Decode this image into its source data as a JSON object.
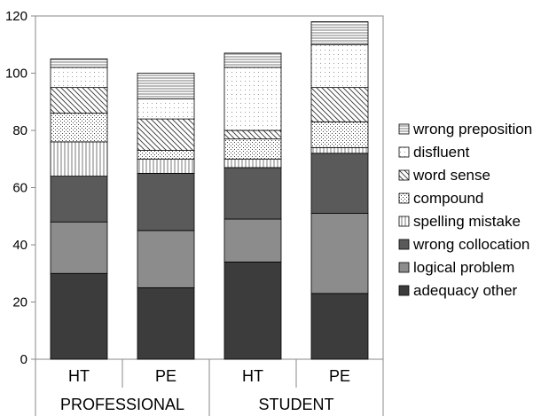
{
  "chart_data": {
    "type": "bar",
    "stacked": true,
    "title": "",
    "xlabel": "",
    "ylabel": "",
    "ylim": [
      0,
      120
    ],
    "yticks": [
      0,
      20,
      40,
      60,
      80,
      100,
      120
    ],
    "grid": false,
    "legend_position": "right",
    "categories": [
      "HT",
      "PE",
      "HT",
      "PE"
    ],
    "groups": [
      {
        "label": "PROFESSIONAL",
        "categories": [
          "HT",
          "PE"
        ]
      },
      {
        "label": "STUDENT",
        "categories": [
          "HT",
          "PE"
        ]
      }
    ],
    "series": [
      {
        "name": "adequacy other",
        "values": [
          30,
          25,
          34,
          23
        ],
        "color": "#3c3c3c",
        "pattern": "solid"
      },
      {
        "name": "logical problem",
        "values": [
          18,
          20,
          15,
          28
        ],
        "color": "#8c8c8c",
        "pattern": "solid"
      },
      {
        "name": "wrong collocation",
        "values": [
          16,
          20,
          18,
          21
        ],
        "color": "#5a5a5a",
        "pattern": "solid"
      },
      {
        "name": "spelling mistake",
        "values": [
          12,
          5,
          3,
          2
        ],
        "color": "#ffffff",
        "pattern": "vertical-lines"
      },
      {
        "name": "compound",
        "values": [
          10,
          3,
          7,
          9
        ],
        "color": "#ffffff",
        "pattern": "dotted-dense"
      },
      {
        "name": "word sense",
        "values": [
          9,
          11,
          3,
          12
        ],
        "color": "#ffffff",
        "pattern": "diagonal-lines"
      },
      {
        "name": "disfluent",
        "values": [
          7,
          7,
          22,
          15
        ],
        "color": "#ffffff",
        "pattern": "dotted-sparse"
      },
      {
        "name": "wrong preposition",
        "values": [
          3,
          9,
          5,
          8
        ],
        "color": "#ffffff",
        "pattern": "horizontal-lines"
      }
    ]
  }
}
